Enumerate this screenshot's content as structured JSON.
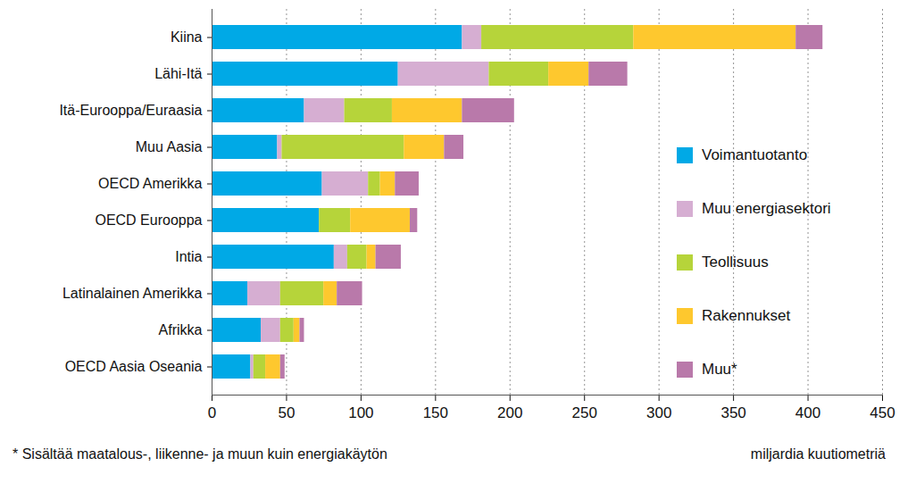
{
  "chart_data": {
    "type": "bar",
    "orientation": "horizontal",
    "stacked": true,
    "grid": true,
    "legend": "right",
    "x_label": "miljardia kuutiometriä",
    "footnote": "* Sisältää maatalous-, liikenne- ja muun kuin energiakäytön",
    "categories": [
      "Kiina",
      "Lähi-Itä",
      "Itä-Eurooppa/Euraasia",
      "Muu Aasia",
      "OECD Amerikka",
      "OECD Eurooppa",
      "Intia",
      "Latinalainen Amerikka",
      "Afrikka",
      "OECD Aasia Oseania"
    ],
    "series": [
      {
        "name": "Voimantuotanto",
        "color": "#00a9e6",
        "values": [
          168,
          125,
          62,
          44,
          74,
          72,
          82,
          24,
          33,
          26
        ]
      },
      {
        "name": "Muu energiasektori",
        "color": "#d6aed2",
        "values": [
          13,
          61,
          27,
          3,
          31,
          0,
          9,
          22,
          13,
          2
        ]
      },
      {
        "name": "Teollisuus",
        "color": "#b6d43a",
        "values": [
          102,
          40,
          32,
          82,
          8,
          21,
          13,
          29,
          9,
          8
        ]
      },
      {
        "name": "Rakennukset",
        "color": "#fec82e",
        "values": [
          109,
          27,
          47,
          27,
          10,
          40,
          6,
          9,
          4,
          10
        ]
      },
      {
        "name": "Muu*",
        "color": "#b979aa",
        "values": [
          18,
          26,
          35,
          13,
          16,
          5,
          17,
          17,
          3,
          3
        ]
      }
    ],
    "xlim": [
      0,
      450
    ],
    "xticks": [
      0,
      50,
      100,
      150,
      200,
      250,
      300,
      350,
      400,
      450
    ]
  }
}
